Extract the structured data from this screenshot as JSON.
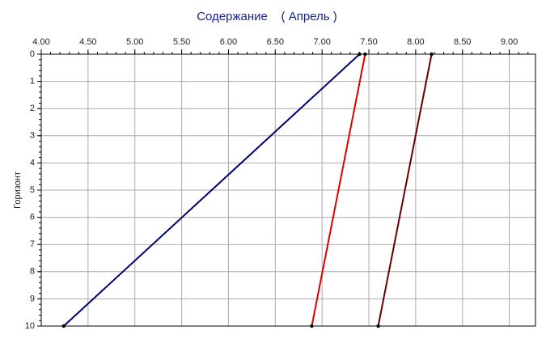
{
  "chart_data": {
    "type": "line",
    "title": "Содержание    ( Апрель )",
    "y_label": "Горизонт",
    "y": [
      0,
      10
    ],
    "series": [
      {
        "color": "#000066",
        "values": [
          7.4,
          4.24
        ]
      },
      {
        "color": "#dd0000",
        "values": [
          7.46,
          6.89
        ]
      },
      {
        "color": "#660000",
        "values": [
          8.17,
          7.6
        ]
      }
    ],
    "xlim": [
      4.0,
      9.28
    ],
    "xticks": [
      {
        "value": 4,
        "label": "4.00"
      },
      {
        "value": 4.5,
        "label": "4.50"
      },
      {
        "value": 5,
        "label": "5.00"
      },
      {
        "value": 5.5,
        "label": "5.50"
      },
      {
        "value": 6,
        "label": "6.00"
      },
      {
        "value": 6.5,
        "label": "6.50"
      },
      {
        "value": 7,
        "label": "7.00"
      },
      {
        "value": 7.5,
        "label": "7.50"
      },
      {
        "value": 8,
        "label": "8.00"
      },
      {
        "value": 8.5,
        "label": "8.50"
      },
      {
        "value": 9,
        "label": "9.00"
      }
    ],
    "ylim": [
      0,
      10
    ],
    "y_reversed": true,
    "yticks": [
      0,
      1,
      2,
      3,
      4,
      5,
      6,
      7,
      8,
      9,
      10
    ],
    "grid": true
  }
}
